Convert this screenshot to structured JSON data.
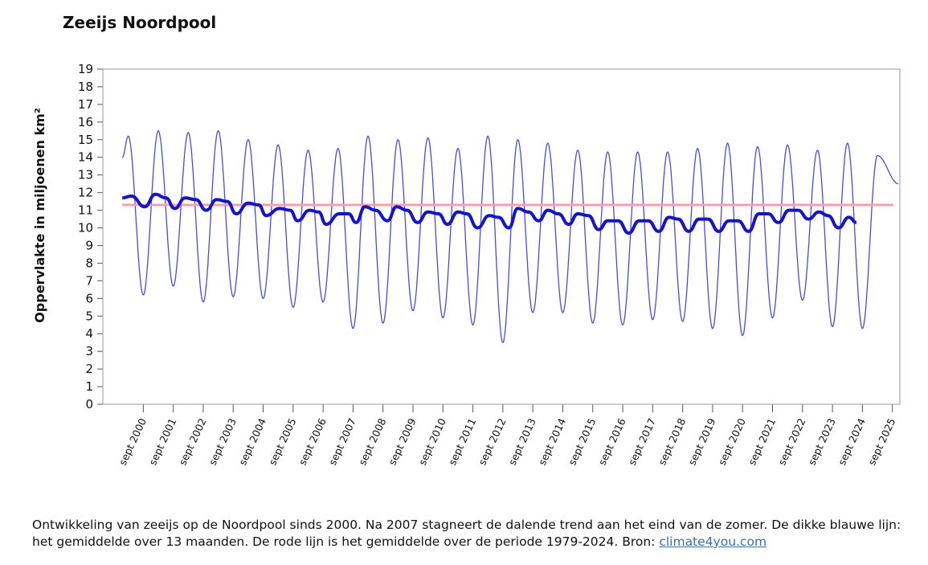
{
  "title": "Zeeijs Noordpool",
  "caption": {
    "text": "Ontwikkeling van zeeijs op de Noordpool sinds 2000. Na 2007 stagneert de dalende trend aan het eind van de zomer. De dikke blauwe lijn: het gemiddelde over 13 maanden. De rode lijn is het gemiddelde over de periode 1979-2024. Bron: ",
    "link_text": "climate4you.com"
  },
  "colors": {
    "monthly": "#4a4ae0",
    "running_mean": "#1414c8",
    "long_term_mean": "#f4a0a8",
    "frame": "#9a9a9a"
  },
  "chart_data": {
    "type": "line",
    "ylabel": "Oppervlakte in miljoenen km²",
    "ylim": [
      0,
      19
    ],
    "yticks": [
      0,
      1,
      2,
      3,
      4,
      5,
      6,
      7,
      8,
      9,
      10,
      11,
      12,
      13,
      14,
      15,
      16,
      17,
      18,
      19
    ],
    "xticks": [
      "sept 2000",
      "sept 2001",
      "sept 2002",
      "sept 2003",
      "sept 2004",
      "sept 2005",
      "sept 2006",
      "sept 2007",
      "sept 2008",
      "sept 2009",
      "sept 2010",
      "sept 2011",
      "sept 2012",
      "sept 2013",
      "sept 2014",
      "sept 2015",
      "sept 2016",
      "sept 2017",
      "sept 2018",
      "sept 2019",
      "sept 2020",
      "sept 2021",
      "sept 2022",
      "sept 2023",
      "sept 2024",
      "sept 2025"
    ],
    "xlim": [
      1999.35,
      2025.95
    ],
    "series": [
      {
        "key": "monthly",
        "start": 2000.0,
        "seasonal_max": [
          15.2,
          15.5,
          15.4,
          15.5,
          15.0,
          14.7,
          14.4,
          14.5,
          15.2,
          15.0,
          15.1,
          14.5,
          15.2,
          15.0,
          14.8,
          14.4,
          14.3,
          14.3,
          14.3,
          14.5,
          14.8,
          14.6,
          14.7,
          14.4,
          14.8,
          14.1
        ],
        "seasonal_min": [
          6.2,
          6.7,
          5.8,
          6.1,
          6.0,
          5.5,
          5.8,
          4.3,
          4.6,
          5.3,
          4.9,
          4.5,
          3.5,
          5.2,
          5.2,
          4.6,
          4.5,
          4.8,
          4.7,
          4.3,
          3.9,
          4.9,
          5.9,
          4.4,
          4.3
        ],
        "end": 2025.9,
        "end_value": 12.5
      },
      {
        "key": "running_mean",
        "x": [
          2000.0,
          2000.3,
          2000.75,
          2001.1,
          2001.45,
          2001.75,
          2002.1,
          2002.45,
          2002.8,
          2003.15,
          2003.5,
          2003.8,
          2004.2,
          2004.55,
          2004.8,
          2005.25,
          2005.6,
          2005.85,
          2006.25,
          2006.55,
          2006.8,
          2007.25,
          2007.55,
          2007.8,
          2008.1,
          2008.45,
          2008.85,
          2009.15,
          2009.5,
          2009.85,
          2010.2,
          2010.55,
          2010.85,
          2011.2,
          2011.5,
          2011.85,
          2012.25,
          2012.55,
          2012.9,
          2013.2,
          2013.55,
          2013.9,
          2014.2,
          2014.55,
          2014.9,
          2015.2,
          2015.55,
          2015.9,
          2016.2,
          2016.55,
          2016.9,
          2017.25,
          2017.55,
          2017.9,
          2018.25,
          2018.55,
          2018.9,
          2019.25,
          2019.55,
          2019.9,
          2020.25,
          2020.55,
          2020.9,
          2021.25,
          2021.55,
          2021.9,
          2022.25,
          2022.55,
          2022.9,
          2023.25,
          2023.55,
          2023.9,
          2024.25,
          2024.5
        ],
        "y": [
          11.7,
          11.8,
          11.2,
          11.9,
          11.7,
          11.1,
          11.7,
          11.6,
          11.0,
          11.6,
          11.5,
          10.8,
          11.4,
          11.3,
          10.7,
          11.1,
          11.0,
          10.4,
          11.0,
          10.9,
          10.2,
          10.8,
          10.8,
          10.3,
          11.2,
          11.0,
          10.4,
          11.2,
          11.0,
          10.3,
          10.9,
          10.8,
          10.2,
          10.9,
          10.8,
          10.0,
          10.7,
          10.6,
          10.0,
          11.1,
          10.9,
          10.4,
          11.0,
          10.8,
          10.2,
          10.8,
          10.7,
          9.9,
          10.4,
          10.4,
          9.7,
          10.4,
          10.4,
          9.8,
          10.6,
          10.5,
          9.8,
          10.5,
          10.5,
          9.8,
          10.4,
          10.4,
          9.8,
          10.8,
          10.8,
          10.3,
          11.0,
          11.0,
          10.5,
          10.9,
          10.7,
          10.0,
          10.6,
          10.3
        ]
      },
      {
        "key": "long_term_mean",
        "y_value": 11.3
      }
    ]
  }
}
